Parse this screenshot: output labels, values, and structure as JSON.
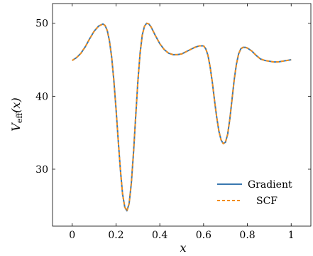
{
  "chart_data": {
    "type": "line",
    "title": "",
    "xlabel": "x",
    "ylabel_main": "V",
    "ylabel_sub": "eff",
    "ylabel_arg": "(x)",
    "xlim": [
      -0.09,
      1.09
    ],
    "ylim": [
      22.2,
      52.7
    ],
    "xticks": [
      0,
      0.2,
      0.4,
      0.6,
      0.8,
      1
    ],
    "xtick_labels": [
      "0",
      "0.2",
      "0.4",
      "0.6",
      "0.8",
      "1"
    ],
    "yticks": [
      30,
      40,
      50
    ],
    "ytick_labels": [
      "30",
      "40",
      "50"
    ],
    "grid": false,
    "legend_position": "bottom-right",
    "x": [
      0,
      0.02,
      0.04,
      0.06,
      0.08,
      0.1,
      0.12,
      0.14,
      0.15,
      0.16,
      0.17,
      0.18,
      0.19,
      0.2,
      0.21,
      0.22,
      0.23,
      0.24,
      0.25,
      0.26,
      0.27,
      0.28,
      0.29,
      0.3,
      0.31,
      0.32,
      0.33,
      0.34,
      0.35,
      0.36,
      0.38,
      0.4,
      0.42,
      0.44,
      0.46,
      0.48,
      0.5,
      0.52,
      0.54,
      0.56,
      0.58,
      0.6,
      0.61,
      0.62,
      0.63,
      0.64,
      0.65,
      0.66,
      0.67,
      0.68,
      0.69,
      0.7,
      0.71,
      0.72,
      0.73,
      0.74,
      0.75,
      0.76,
      0.77,
      0.78,
      0.79,
      0.8,
      0.82,
      0.84,
      0.86,
      0.88,
      0.9,
      0.92,
      0.94,
      0.96,
      0.98,
      1.0
    ],
    "series": [
      {
        "name": "Gradient",
        "color": "#3a78b0",
        "dash": "solid",
        "values": [
          44.9,
          45.3,
          45.9,
          46.8,
          47.9,
          48.9,
          49.6,
          49.9,
          49.7,
          49.0,
          47.6,
          45.4,
          42.2,
          38.3,
          34.0,
          29.9,
          26.6,
          24.8,
          24.3,
          25.3,
          28.1,
          32.3,
          37.3,
          42.1,
          45.9,
          48.4,
          49.6,
          50.0,
          49.9,
          49.5,
          48.3,
          47.2,
          46.4,
          45.9,
          45.7,
          45.7,
          45.8,
          46.1,
          46.4,
          46.7,
          46.9,
          46.9,
          46.5,
          45.6,
          44.0,
          41.9,
          39.4,
          37.1,
          35.2,
          34.0,
          33.5,
          33.7,
          34.8,
          36.9,
          39.6,
          42.3,
          44.4,
          45.8,
          46.5,
          46.7,
          46.7,
          46.6,
          46.2,
          45.6,
          45.1,
          44.9,
          44.8,
          44.7,
          44.7,
          44.8,
          44.9,
          45.0
        ]
      },
      {
        "name": "SCF",
        "color": "#f28e1c",
        "dash": "dashed",
        "values": [
          44.9,
          45.3,
          45.9,
          46.8,
          47.9,
          48.9,
          49.6,
          49.9,
          49.7,
          49.0,
          47.6,
          45.4,
          42.2,
          38.3,
          34.0,
          29.9,
          26.6,
          24.8,
          24.3,
          25.3,
          28.1,
          32.3,
          37.3,
          42.1,
          45.9,
          48.4,
          49.6,
          50.0,
          49.9,
          49.5,
          48.3,
          47.2,
          46.4,
          45.9,
          45.7,
          45.7,
          45.8,
          46.1,
          46.4,
          46.7,
          46.9,
          46.9,
          46.5,
          45.6,
          44.0,
          41.9,
          39.4,
          37.1,
          35.2,
          34.0,
          33.5,
          33.7,
          34.8,
          36.9,
          39.6,
          42.3,
          44.4,
          45.8,
          46.5,
          46.7,
          46.7,
          46.6,
          46.2,
          45.6,
          45.1,
          44.9,
          44.8,
          44.7,
          44.7,
          44.8,
          44.9,
          45.0
        ]
      }
    ]
  }
}
